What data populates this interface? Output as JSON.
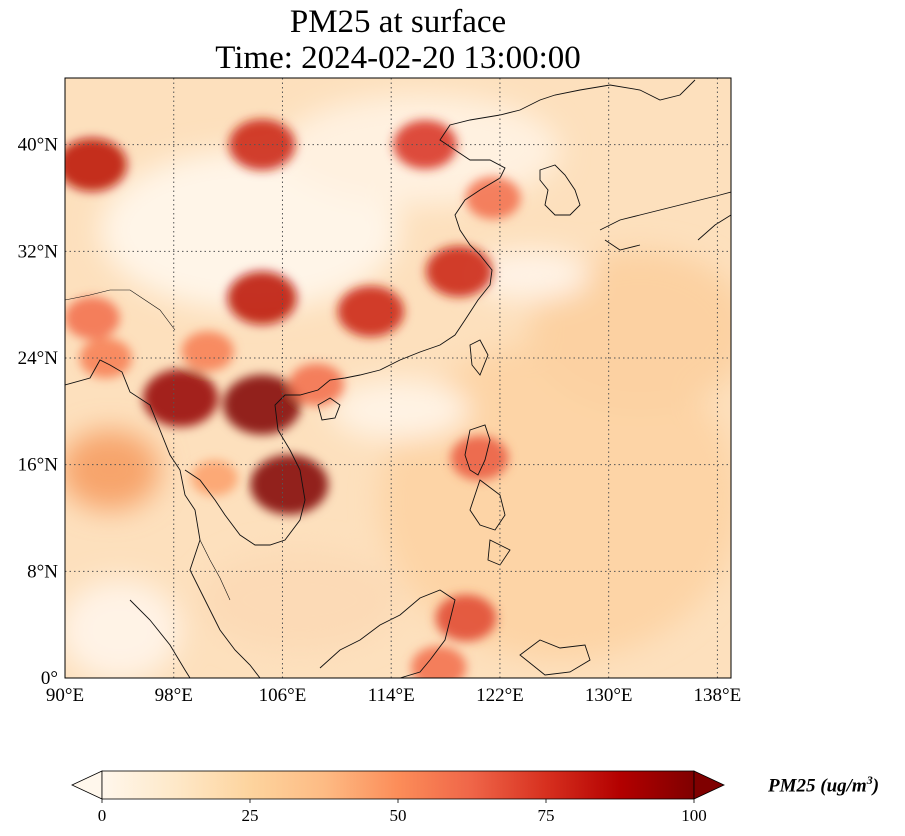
{
  "title": {
    "line1": "PM25 at surface",
    "line2": "Time: 2024-02-20 13:00:00"
  },
  "map": {
    "projection": "PlateCarree",
    "lon_range": [
      90,
      139
    ],
    "lat_range": [
      0,
      45
    ],
    "lon_ticks": [
      {
        "value": 90,
        "label": "90°E"
      },
      {
        "value": 98,
        "label": "98°E"
      },
      {
        "value": 106,
        "label": "106°E"
      },
      {
        "value": 114,
        "label": "114°E"
      },
      {
        "value": 122,
        "label": "122°E"
      },
      {
        "value": 130,
        "label": "130°E"
      },
      {
        "value": 138,
        "label": "138°E"
      }
    ],
    "lat_ticks": [
      {
        "value": 0,
        "label": "0°"
      },
      {
        "value": 8,
        "label": "8°N"
      },
      {
        "value": 16,
        "label": "16°N"
      },
      {
        "value": 24,
        "label": "24°N"
      },
      {
        "value": 32,
        "label": "32°N"
      },
      {
        "value": 40,
        "label": "40°N"
      }
    ],
    "gridlines": "dotted",
    "colormap": "OrRd"
  },
  "colorbar": {
    "label_text": "PM25 (ug/m",
    "label_sup": "3",
    "label_close": ")",
    "min": 0,
    "max": 100,
    "extend": "both",
    "ticks": [
      "0",
      "25",
      "50",
      "75",
      "100"
    ],
    "tick_values": [
      0,
      25,
      50,
      75,
      100
    ],
    "colors": [
      "#fff7ec",
      "#fee8c8",
      "#fdd49e",
      "#fdbb84",
      "#fc8d59",
      "#ef6548",
      "#d7301f",
      "#b30000",
      "#7f0000"
    ]
  },
  "chart_data": {
    "type": "heatmap",
    "variable": "PM25 at surface",
    "time": "2024-02-20 13:00:00",
    "units": "ug/m3",
    "colorbar_range": [
      0,
      100
    ],
    "xlim": [
      90,
      139
    ],
    "ylim": [
      0,
      45
    ],
    "hotspots": [
      {
        "lon": 104.5,
        "lat": 20.5,
        "value": 100
      },
      {
        "lon": 106.5,
        "lat": 14.5,
        "value": 100
      },
      {
        "lon": 98.5,
        "lat": 21.0,
        "value": 95
      },
      {
        "lon": 104.5,
        "lat": 28.5,
        "value": 85
      },
      {
        "lon": 112.5,
        "lat": 27.5,
        "value": 80
      },
      {
        "lon": 119.0,
        "lat": 30.5,
        "value": 80
      },
      {
        "lon": 104.5,
        "lat": 40.0,
        "value": 80
      },
      {
        "lon": 92.0,
        "lat": 38.5,
        "value": 85
      },
      {
        "lon": 116.5,
        "lat": 40.0,
        "value": 75
      },
      {
        "lon": 121.5,
        "lat": 36.0,
        "value": 60
      },
      {
        "lon": 92.0,
        "lat": 27.0,
        "value": 60
      },
      {
        "lon": 93.0,
        "lat": 24.0,
        "value": 55
      },
      {
        "lon": 119.5,
        "lat": 4.5,
        "value": 70
      },
      {
        "lon": 117.5,
        "lat": 0.8,
        "value": 60
      },
      {
        "lon": 120.5,
        "lat": 16.5,
        "value": 65
      },
      {
        "lon": 101.0,
        "lat": 15.0,
        "value": 45
      },
      {
        "lon": 100.5,
        "lat": 24.5,
        "value": 55
      },
      {
        "lon": 108.5,
        "lat": 22.0,
        "value": 60
      }
    ],
    "background_ocean_value": 15,
    "background_land_value": 20
  }
}
